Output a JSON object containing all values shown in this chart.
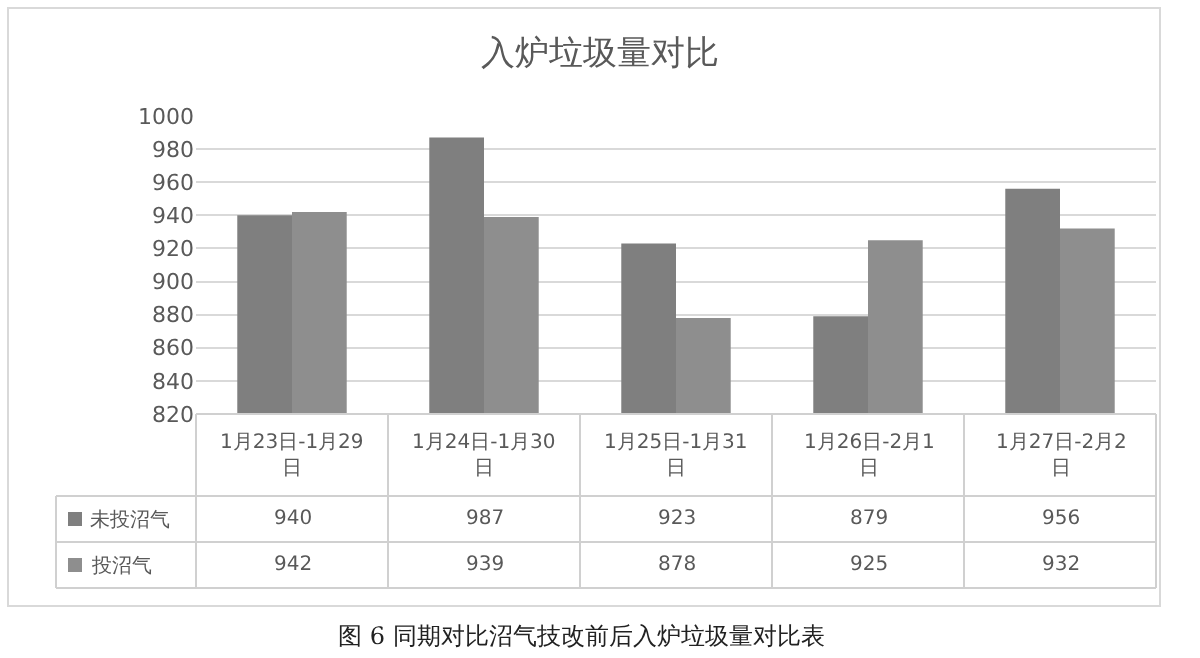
{
  "chart_data": {
    "type": "bar",
    "title": "入炉垃圾量对比",
    "categories": [
      "1月23日-1月29日",
      "1月24日-1月30日",
      "1月25日-1月31日",
      "1月26日-2月1日",
      "1月27日-2月2日"
    ],
    "series": [
      {
        "name": "未投沼气",
        "color": "#7f7f7f",
        "values": [
          940,
          987,
          923,
          879,
          956
        ]
      },
      {
        "name": "投沼气",
        "color": "#8e8e8e",
        "values": [
          942,
          939,
          878,
          925,
          932
        ]
      }
    ],
    "ylim": [
      820,
      1000
    ],
    "yticks": [
      820,
      840,
      860,
      880,
      900,
      920,
      940,
      960,
      980,
      1000
    ],
    "grid": "y",
    "legend": "bottom left",
    "data_labels": true,
    "annotations": [
      "图 6 同期对比沼气技改前后入炉垃圾量对比表"
    ]
  }
}
